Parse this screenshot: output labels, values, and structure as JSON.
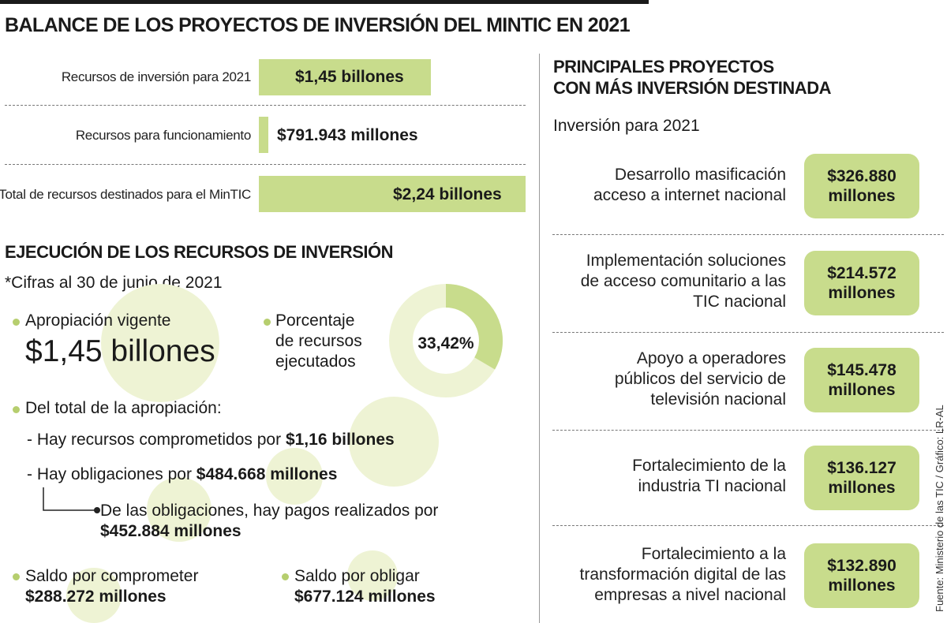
{
  "header": {
    "title": "BALANCE DE LOS PROYECTOS DE INVERSIÓN DEL MINTIC EN 2021"
  },
  "recursos": [
    {
      "label": "Recursos de inversión para 2021",
      "value": "$1,45 billones",
      "amount": 1.45
    },
    {
      "label": "Recursos para funcionamiento",
      "value": "$791.943 millones",
      "amount": 0.791943
    },
    {
      "label": "Total de recursos destinados para el MinTIC",
      "value": "$2,24 billones",
      "amount": 2.24
    }
  ],
  "ejecucion": {
    "title": "EJECUCIÓN DE LOS RECURSOS DE INVERSIÓN",
    "note": "*Cifras al 30 de junio de 2021",
    "apropiacion_label": "Apropiación vigente",
    "apropiacion_value": "$1,45 billones",
    "porcentaje_label_1": "Porcentaje",
    "porcentaje_label_2": "de recursos",
    "porcentaje_label_3": "ejecutados",
    "porcentaje_value": "33,42%",
    "porcentaje_fraction": 0.3342,
    "total_label": "Del total de la apropiación:",
    "comprometidos_text": "- Hay recursos comprometidos por",
    "comprometidos_value": "$1,16 billones",
    "obligaciones_text": "- Hay obligaciones por",
    "obligaciones_value": "$484.668 millones",
    "pagos_text": "De las obligaciones, hay pagos realizados por",
    "pagos_value": "$452.884 millones",
    "saldo_comprometer_label": "Saldo por comprometer",
    "saldo_comprometer_value": "$288.272 millones",
    "saldo_obligar_label": "Saldo por obligar",
    "saldo_obligar_value": "$677.124 millones"
  },
  "proyectos": {
    "title_1": "PRINCIPALES PROYECTOS",
    "title_2": "CON MÁS INVERSIÓN DESTINADA",
    "subtitle": "Inversión para 2021",
    "items": [
      {
        "name": [
          "Desarrollo masificación",
          "acceso a internet nacional"
        ],
        "value_1": "$326.880",
        "value_2": "millones"
      },
      {
        "name": [
          "Implementación soluciones",
          "de acceso comunitario a las",
          "TIC nacional"
        ],
        "value_1": "$214.572",
        "value_2": "millones"
      },
      {
        "name": [
          "Apoyo a operadores",
          "públicos del servicio de",
          "televisión nacional"
        ],
        "value_1": "$145.478",
        "value_2": "millones"
      },
      {
        "name": [
          "Fortalecimiento de la",
          "industria TI nacional"
        ],
        "value_1": "$136.127",
        "value_2": "millones"
      },
      {
        "name": [
          "Fortalecimiento a la",
          "transformación digital de las",
          "empresas a nivel nacional"
        ],
        "value_1": "$132.890",
        "value_2": "millones"
      }
    ]
  },
  "source": "Fuente: Ministerio de las TIC / Gráfico: LR-AL",
  "colors": {
    "accent": "#c8dc8c",
    "accent_light": "#eef3d4",
    "dot": "#b6ce6e"
  }
}
